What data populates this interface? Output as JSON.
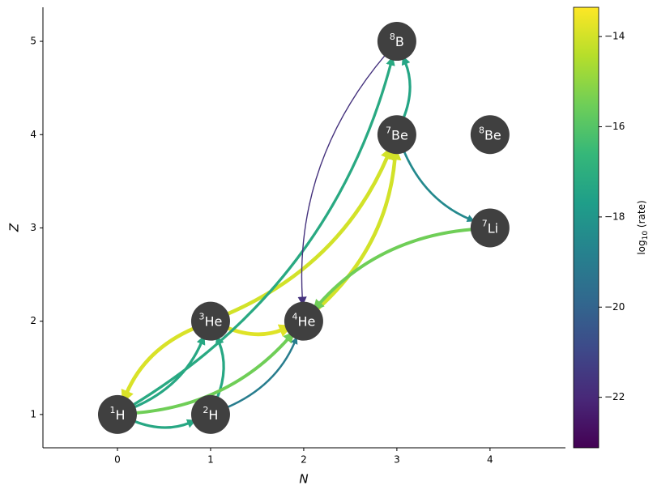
{
  "chart_data": {
    "type": "network",
    "x_label": "N",
    "y_label": "Z",
    "xlim": [
      -0.8,
      4.81
    ],
    "ylim": [
      0.643,
      5.365
    ],
    "xticks": [
      0,
      1,
      2,
      3,
      4
    ],
    "yticks": [
      1,
      2,
      3,
      4,
      5
    ],
    "node_color": "#404040",
    "nodes": [
      {
        "mass": "1",
        "symbol": "H",
        "N": 0,
        "Z": 1
      },
      {
        "mass": "2",
        "symbol": "H",
        "N": 1,
        "Z": 1
      },
      {
        "mass": "3",
        "symbol": "He",
        "N": 1,
        "Z": 2
      },
      {
        "mass": "4",
        "symbol": "He",
        "N": 2,
        "Z": 2
      },
      {
        "mass": "7",
        "symbol": "Li",
        "N": 4,
        "Z": 3
      },
      {
        "mass": "7",
        "symbol": "Be",
        "N": 3,
        "Z": 4
      },
      {
        "mass": "8",
        "symbol": "Be",
        "N": 4,
        "Z": 4
      },
      {
        "mass": "8",
        "symbol": "B",
        "N": 3,
        "Z": 5
      }
    ],
    "edges": [
      {
        "from": [
          0,
          1
        ],
        "to": [
          1,
          1
        ],
        "value": -17.3
      },
      {
        "from": [
          0,
          1
        ],
        "to": [
          1,
          2
        ],
        "value": -17.3
      },
      {
        "from": [
          1,
          1
        ],
        "to": [
          1,
          2
        ],
        "value": -17.3
      },
      {
        "from": [
          0,
          1
        ],
        "to": [
          2,
          2
        ],
        "value": -15.5
      },
      {
        "from": [
          1,
          1
        ],
        "to": [
          2,
          2
        ],
        "value": -19.0
      },
      {
        "from": [
          1,
          2
        ],
        "to": [
          2,
          2
        ],
        "value": -13.8
      },
      {
        "from": [
          1,
          2
        ],
        "to": [
          0,
          1
        ],
        "value": -13.9
      },
      {
        "from": [
          1,
          2
        ],
        "to": [
          3,
          4
        ],
        "value": -14.0
      },
      {
        "from": [
          2,
          2
        ],
        "to": [
          3,
          4
        ],
        "value": -14.0
      },
      {
        "from": [
          3,
          4
        ],
        "to": [
          3,
          5
        ],
        "value": -17.4
      },
      {
        "from": [
          0,
          1
        ],
        "to": [
          3,
          5
        ],
        "value": -17.2
      },
      {
        "from": [
          3,
          5
        ],
        "to": [
          2,
          2
        ],
        "value": -21.7
      },
      {
        "from": [
          3,
          4
        ],
        "to": [
          4,
          3
        ],
        "value": -18.5
      },
      {
        "from": [
          4,
          3
        ],
        "to": [
          2,
          2
        ],
        "value": -15.5
      }
    ],
    "colormap": [
      "#440154",
      "#482878",
      "#3e4989",
      "#31688e",
      "#26828e",
      "#1f9e89",
      "#35b779",
      "#6ece58",
      "#b5de2b",
      "#fde725"
    ],
    "colorbar_lim": [
      -23.12,
      -13.35
    ],
    "colorbar_ticks": [
      {
        "value": -14,
        "label": "−14"
      },
      {
        "value": -16,
        "label": "−16"
      },
      {
        "value": -18,
        "label": "−18"
      },
      {
        "value": -20,
        "label": "−20"
      },
      {
        "value": -22,
        "label": "−22"
      }
    ],
    "colorbar_label": {
      "base": "log",
      "sub": "10",
      "rest": " (rate)"
    }
  }
}
